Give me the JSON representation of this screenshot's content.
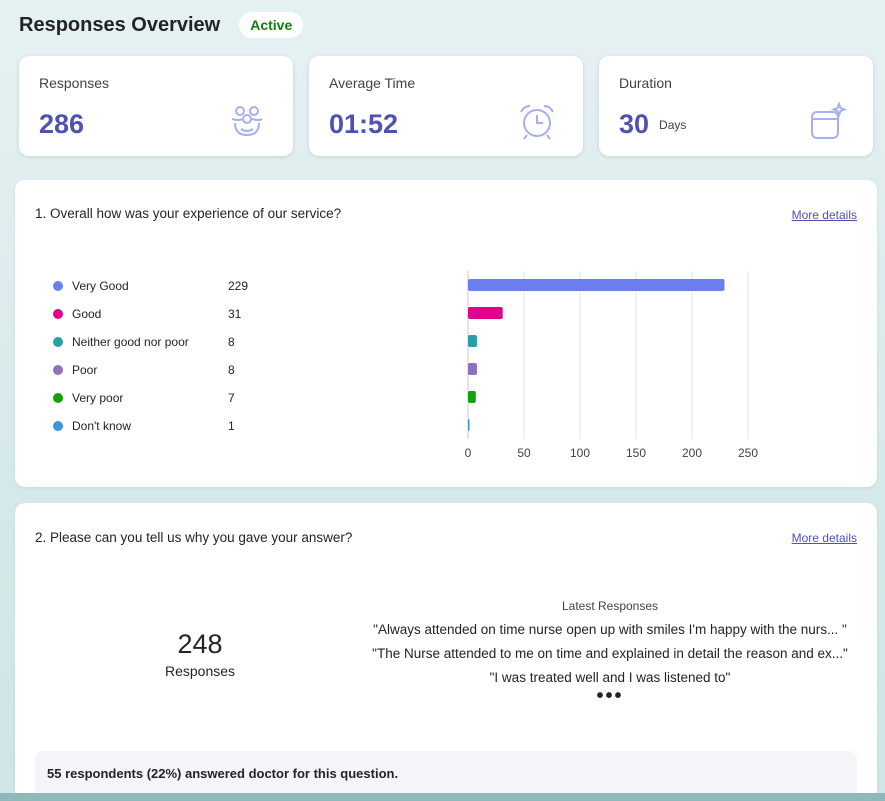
{
  "header": {
    "title": "Responses Overview",
    "status": "Active"
  },
  "stats": [
    {
      "label": "Responses",
      "value": "286",
      "unit": "",
      "icon": "people-icon"
    },
    {
      "label": "Average Time",
      "value": "01:52",
      "unit": "",
      "icon": "alarm-clock-icon"
    },
    {
      "label": "Duration",
      "value": "30",
      "unit": "Days",
      "icon": "calendar-sparkle-icon"
    }
  ],
  "q1": {
    "title": "1. Overall how was your experience of our service?",
    "more_details": "More details",
    "legend": [
      {
        "label": "Very Good",
        "count": "229",
        "color": "#6b7ff0"
      },
      {
        "label": "Good",
        "count": "31",
        "color": "#e3008c"
      },
      {
        "label": "Neither good nor poor",
        "count": "8",
        "color": "#2aa0a4"
      },
      {
        "label": "Poor",
        "count": "8",
        "color": "#8e6fc1"
      },
      {
        "label": "Very poor",
        "count": "7",
        "color": "#13a10e"
      },
      {
        "label": "Don't know",
        "count": "1",
        "color": "#3a96dd"
      }
    ]
  },
  "chart_data": {
    "type": "bar",
    "orientation": "horizontal",
    "categories": [
      "Very Good",
      "Good",
      "Neither good nor poor",
      "Poor",
      "Very poor",
      "Don't know"
    ],
    "values": [
      229,
      31,
      8,
      8,
      7,
      1
    ],
    "colors": [
      "#6b7ff0",
      "#e3008c",
      "#2aa0a4",
      "#8e6fc1",
      "#13a10e",
      "#3a96dd"
    ],
    "xticks": [
      "0",
      "50",
      "100",
      "150",
      "200",
      "250"
    ],
    "xlim": [
      0,
      250
    ],
    "grid": true
  },
  "q2": {
    "title": "2. Please can you tell us why you gave your answer?",
    "more_details": "More details",
    "responses_count": "248",
    "responses_label": "Responses",
    "latest_title": "Latest Responses",
    "latest": [
      "\"Always attended on time nurse open up with smiles I'm happy with the nurs... \"",
      "\"The Nurse attended to me on time and explained in detail the reason and ex...\"",
      "\"I was treated well and I was listened to\""
    ],
    "ellipsis": "•••",
    "summary": "55 respondents (22%) answered doctor for this question."
  }
}
